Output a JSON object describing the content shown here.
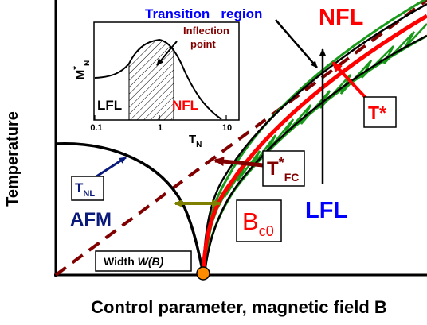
{
  "axes": {
    "xlabel": "Control parameter, magnetic field B",
    "ylabel": "Temperature"
  },
  "labels": {
    "transition_region": "Transition   region",
    "nfl_main": "NFL",
    "lfl_main": "LFL",
    "afm": "AFM",
    "tnl_main": "T",
    "tnl_sub": "NL",
    "tstar": "T*",
    "tfc_main": "T",
    "tfc_star": "*",
    "tfc_sub": "FC",
    "bc0_main": "B",
    "bc0_sub": "c0",
    "width_prefix": "Width ",
    "width_italic": "W(B)"
  },
  "inset": {
    "ylabel_main": "M",
    "ylabel_star": "*",
    "ylabel_sub": "N",
    "xlabel_main": "T",
    "xlabel_sub": "N",
    "ticks": [
      "0.1",
      "1",
      "10"
    ],
    "inflection_line1": "Inflection",
    "inflection_line2": "point",
    "lfl": "LFL",
    "nfl": "NFL"
  },
  "colors": {
    "red": "#ff0000",
    "dark_red": "#800000",
    "blue": "#0000ff",
    "navy": "#0a1a7a",
    "green": "#1a9a1a",
    "olive": "#808000",
    "orange": "#ff8c00"
  }
}
